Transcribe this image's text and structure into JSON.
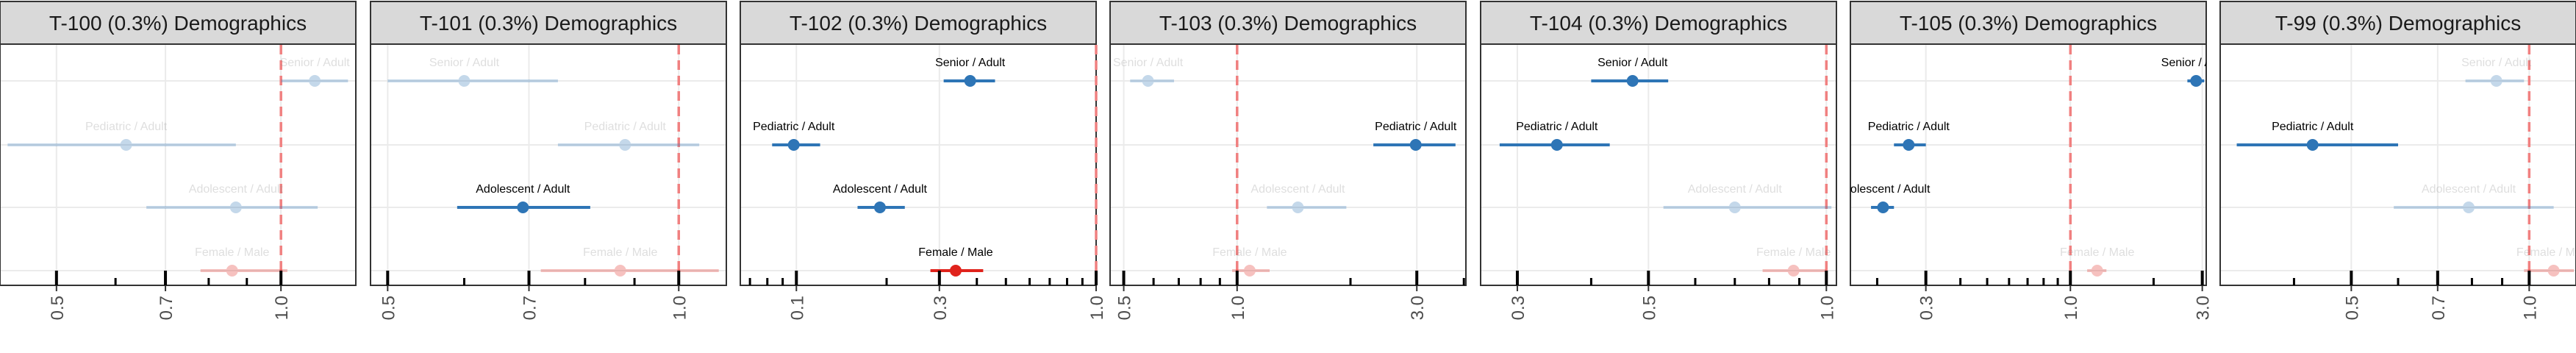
{
  "chart_data": {
    "type": "forest",
    "scale": "log",
    "reference_value": 1.0,
    "reference_color": "#f08080",
    "colors": {
      "age": "#2e75b6",
      "sex": "#e0231c"
    },
    "panels": [
      {
        "title": "T-100 (0.3%) Demographics",
        "xlim": [
          0.42,
          1.26
        ],
        "ticks": [
          {
            "v": 0.5,
            "label": "0.5"
          },
          {
            "v": 0.7,
            "label": "0.7"
          },
          {
            "v": 1.0,
            "label": "1.0"
          }
        ],
        "minor_ticks": [
          0.6,
          0.8,
          0.9
        ],
        "rows": [
          {
            "label": "Senior / Adult",
            "est": 1.11,
            "lo": 1.0,
            "hi": 1.23,
            "sig": false,
            "group": "age"
          },
          {
            "label": "Pediatric / Adult",
            "est": 0.62,
            "lo": 0.43,
            "hi": 0.87,
            "sig": false,
            "group": "age"
          },
          {
            "label": "Adolescent / Adult",
            "est": 0.87,
            "lo": 0.66,
            "hi": 1.12,
            "sig": false,
            "group": "age"
          },
          {
            "label": "Female / Male",
            "est": 0.86,
            "lo": 0.78,
            "hi": 1.02,
            "sig": false,
            "group": "sex"
          }
        ]
      },
      {
        "title": "T-101 (0.3%) Demographics",
        "xlim": [
          0.48,
          1.12
        ],
        "ticks": [
          {
            "v": 0.5,
            "label": "0.5"
          },
          {
            "v": 0.7,
            "label": "0.7"
          },
          {
            "v": 1.0,
            "label": "1.0"
          }
        ],
        "minor_ticks": [
          0.6,
          0.8,
          0.9
        ],
        "rows": [
          {
            "label": "Senior / Adult",
            "est": 0.6,
            "lo": 0.5,
            "hi": 0.75,
            "sig": false,
            "group": "age"
          },
          {
            "label": "Pediatric / Adult",
            "est": 0.88,
            "lo": 0.75,
            "hi": 1.05,
            "sig": false,
            "group": "age"
          },
          {
            "label": "Adolescent / Adult",
            "est": 0.69,
            "lo": 0.59,
            "hi": 0.81,
            "sig": true,
            "group": "age"
          },
          {
            "label": "Female / Male",
            "est": 0.87,
            "lo": 0.72,
            "hi": 1.1,
            "sig": false,
            "group": "sex"
          }
        ]
      },
      {
        "title": "T-102 (0.3%) Demographics",
        "xlim": [
          0.065,
          1.0
        ],
        "ticks": [
          {
            "v": 0.1,
            "label": "0.1"
          },
          {
            "v": 0.3,
            "label": "0.3"
          },
          {
            "v": 1.0,
            "label": "1.0"
          }
        ],
        "minor_ticks": [
          0.07,
          0.08,
          0.09,
          0.2,
          0.4,
          0.5,
          0.6,
          0.7,
          0.8,
          0.9
        ],
        "rows": [
          {
            "label": "Senior / Adult",
            "est": 0.38,
            "lo": 0.31,
            "hi": 0.46,
            "sig": true,
            "group": "age"
          },
          {
            "label": "Pediatric / Adult",
            "est": 0.098,
            "lo": 0.083,
            "hi": 0.12,
            "sig": true,
            "group": "age"
          },
          {
            "label": "Adolescent / Adult",
            "est": 0.19,
            "lo": 0.16,
            "hi": 0.23,
            "sig": true,
            "group": "age"
          },
          {
            "label": "Female / Male",
            "est": 0.34,
            "lo": 0.28,
            "hi": 0.42,
            "sig": true,
            "group": "sex"
          }
        ]
      },
      {
        "title": "T-103 (0.3%) Demographics",
        "xlim": [
          0.46,
          4.05
        ],
        "ticks": [
          {
            "v": 0.5,
            "label": "0.5"
          },
          {
            "v": 1.0,
            "label": "1.0"
          },
          {
            "v": 3.0,
            "label": "3.0"
          }
        ],
        "minor_ticks": [
          0.6,
          0.7,
          0.8,
          0.9,
          2.0,
          4.0
        ],
        "rows": [
          {
            "label": "Senior / Adult",
            "est": 0.58,
            "lo": 0.52,
            "hi": 0.68,
            "sig": false,
            "group": "age"
          },
          {
            "label": "Pediatric / Adult",
            "est": 2.98,
            "lo": 2.3,
            "hi": 3.8,
            "sig": true,
            "group": "age"
          },
          {
            "label": "Adolescent / Adult",
            "est": 1.45,
            "lo": 1.2,
            "hi": 1.95,
            "sig": false,
            "group": "age"
          },
          {
            "label": "Female / Male",
            "est": 1.08,
            "lo": 0.97,
            "hi": 1.22,
            "sig": false,
            "group": "sex"
          }
        ]
      },
      {
        "title": "T-104 (0.3%) Demographics",
        "xlim": [
          0.26,
          1.04
        ],
        "ticks": [
          {
            "v": 0.3,
            "label": "0.3"
          },
          {
            "v": 0.5,
            "label": "0.5"
          },
          {
            "v": 1.0,
            "label": "1.0"
          }
        ],
        "minor_ticks": [
          0.4,
          0.6,
          0.7,
          0.8,
          0.9
        ],
        "rows": [
          {
            "label": "Senior / Adult",
            "est": 0.47,
            "lo": 0.4,
            "hi": 0.54,
            "sig": true,
            "group": "age"
          },
          {
            "label": "Pediatric / Adult",
            "est": 0.35,
            "lo": 0.28,
            "hi": 0.43,
            "sig": true,
            "group": "age"
          },
          {
            "label": "Adolescent / Adult",
            "est": 0.7,
            "lo": 0.53,
            "hi": 1.02,
            "sig": false,
            "group": "age"
          },
          {
            "label": "Female / Male",
            "est": 0.88,
            "lo": 0.78,
            "hi": 1.0,
            "sig": false,
            "group": "sex"
          }
        ]
      },
      {
        "title": "T-105 (0.3%) Demographics",
        "xlim": [
          0.16,
          3.1
        ],
        "ticks": [
          {
            "v": 0.3,
            "label": "0.3"
          },
          {
            "v": 1.0,
            "label": "1.0"
          },
          {
            "v": 3.0,
            "label": "3.0"
          }
        ],
        "minor_ticks": [
          0.2,
          0.4,
          0.5,
          0.6,
          0.7,
          0.8,
          0.9,
          2.0
        ],
        "rows": [
          {
            "label": "Senior / Adult",
            "est": 2.85,
            "lo": 2.65,
            "hi": 3.05,
            "sig": true,
            "group": "age"
          },
          {
            "label": "Pediatric / Adult",
            "est": 0.26,
            "lo": 0.23,
            "hi": 0.3,
            "sig": true,
            "group": "age"
          },
          {
            "label": "Adolescent / Adult",
            "est": 0.21,
            "lo": 0.19,
            "hi": 0.23,
            "sig": true,
            "group": "age"
          },
          {
            "label": "Female / Male",
            "est": 1.25,
            "lo": 1.15,
            "hi": 1.35,
            "sig": false,
            "group": "sex"
          }
        ]
      },
      {
        "title": "T-99 (0.3%) Demographics",
        "xlim": [
          0.3,
          1.2
        ],
        "ticks": [
          {
            "v": 0.5,
            "label": "0.5"
          },
          {
            "v": 0.7,
            "label": "0.7"
          },
          {
            "v": 1.0,
            "label": "1.0"
          }
        ],
        "minor_ticks": [
          0.4,
          0.6,
          0.8,
          0.9
        ],
        "rows": [
          {
            "label": "Senior / Adult",
            "est": 0.88,
            "lo": 0.78,
            "hi": 0.98,
            "sig": false,
            "group": "age"
          },
          {
            "label": "Pediatric / Adult",
            "est": 0.43,
            "lo": 0.32,
            "hi": 0.6,
            "sig": true,
            "group": "age"
          },
          {
            "label": "Adolescent / Adult",
            "est": 0.79,
            "lo": 0.59,
            "hi": 1.1,
            "sig": false,
            "group": "age"
          },
          {
            "label": "Female / Male",
            "est": 1.1,
            "lo": 0.98,
            "hi": 1.19,
            "sig": false,
            "group": "sex"
          }
        ]
      }
    ]
  }
}
